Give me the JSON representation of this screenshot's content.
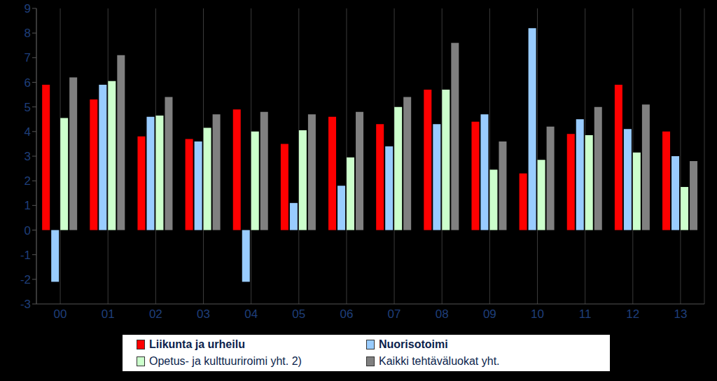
{
  "chart_data": {
    "type": "bar",
    "categories": [
      "00",
      "01",
      "02",
      "03",
      "04",
      "05",
      "06",
      "07",
      "08",
      "09",
      "10",
      "11",
      "12",
      "13"
    ],
    "series": [
      {
        "name": "Liikunta ja urheilu",
        "color": "#ff0000",
        "values": [
          5.9,
          5.3,
          3.8,
          3.7,
          4.9,
          3.5,
          4.6,
          4.3,
          5.7,
          4.4,
          2.3,
          3.9,
          5.9,
          4.0
        ]
      },
      {
        "name": "Nuorisotoimi",
        "color": "#99ccff",
        "values": [
          -2.1,
          5.9,
          4.6,
          3.6,
          -2.1,
          1.1,
          1.8,
          3.4,
          4.3,
          4.7,
          8.2,
          4.5,
          4.1,
          3.0
        ]
      },
      {
        "name": "Opetus- ja kulttuuriroimi yht. 2)",
        "color": "#ccffcc",
        "values": [
          4.55,
          6.05,
          4.65,
          4.15,
          4.0,
          4.05,
          2.95,
          5.0,
          5.7,
          2.45,
          2.85,
          3.85,
          3.15,
          1.75
        ]
      },
      {
        "name": "Kaikki tehtäväluokat yht.",
        "color": "#808080",
        "values": [
          6.2,
          7.1,
          5.4,
          4.7,
          4.8,
          4.7,
          4.8,
          5.4,
          7.6,
          3.6,
          4.2,
          5.0,
          5.1,
          2.8
        ]
      }
    ],
    "ylim": [
      -3,
      9
    ],
    "yticks": [
      -3,
      -2,
      -1,
      0,
      1,
      2,
      3,
      4,
      5,
      6,
      7,
      8,
      9
    ],
    "grid": true,
    "legend": "bottom"
  }
}
